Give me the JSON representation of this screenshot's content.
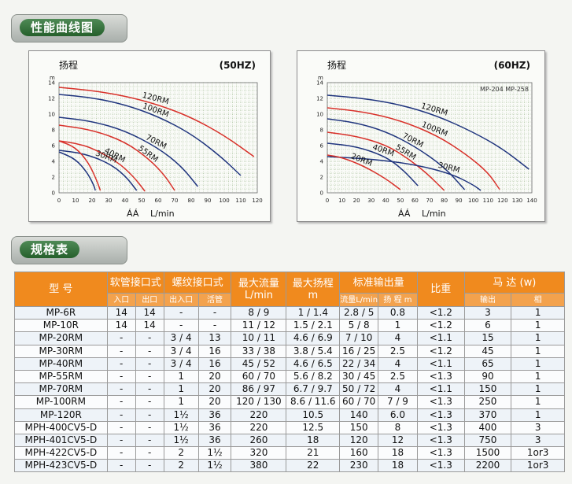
{
  "sections": {
    "curves_title": "性能曲线图",
    "spec_title": "规格表"
  },
  "chart_data": [
    {
      "type": "line",
      "title": "(50HZ)",
      "ylabel": "扬程",
      "yunit": "m",
      "xlabel": "L/min",
      "x_axis_mark": "ÁÁ",
      "xlim": [
        0,
        120
      ],
      "ylim": [
        0,
        14
      ],
      "xticks": [
        0,
        10,
        20,
        30,
        40,
        50,
        60,
        70,
        80,
        90,
        100,
        110,
        120
      ],
      "yticks": [
        0,
        2,
        4,
        6,
        8,
        10,
        12,
        14
      ],
      "grid": true,
      "series": [
        {
          "name": "120RM",
          "color": "#d8312a",
          "x": [
            0,
            20,
            40,
            60,
            80,
            100,
            118
          ],
          "y": [
            13.4,
            13.0,
            12.3,
            11.2,
            9.6,
            7.3,
            4.6
          ]
        },
        {
          "name": "100RM",
          "color": "#20357e",
          "x": [
            0,
            20,
            40,
            60,
            80,
            98,
            110
          ],
          "y": [
            12.5,
            12.1,
            11.2,
            9.7,
            7.5,
            4.6,
            2.2
          ]
        },
        {
          "name": "70RM",
          "color": "#20357e",
          "x": [
            0,
            20,
            40,
            60,
            74,
            84
          ],
          "y": [
            9.6,
            9.1,
            7.9,
            5.7,
            3.4,
            0.8
          ]
        },
        {
          "name": "55RM",
          "color": "#d8312a",
          "x": [
            0,
            20,
            40,
            55,
            64,
            70
          ],
          "y": [
            8.6,
            8.0,
            6.5,
            4.2,
            2.2,
            0.3
          ]
        },
        {
          "name": "40RM",
          "color": "#d8312a",
          "x": [
            0,
            10,
            20,
            35,
            45,
            52
          ],
          "y": [
            6.6,
            6.3,
            5.7,
            4.0,
            2.1,
            0.2
          ]
        },
        {
          "name": "30RM",
          "color": "#20357e",
          "x": [
            0,
            15,
            30,
            40,
            47
          ],
          "y": [
            5.4,
            5.0,
            3.8,
            2.2,
            0.3
          ]
        },
        {
          "name": "",
          "color": "#d8312a",
          "x": [
            0,
            10,
            18,
            23,
            25
          ],
          "y": [
            6.6,
            5.8,
            3.8,
            1.5,
            0.3
          ]
        },
        {
          "name": "",
          "color": "#20357e",
          "x": [
            0,
            10,
            17,
            21,
            22
          ],
          "y": [
            5.2,
            4.3,
            2.6,
            1.0,
            0.3
          ]
        }
      ]
    },
    {
      "type": "line",
      "title": "(60HZ)",
      "ylabel": "扬程",
      "yunit": "m",
      "xlabel": "L/min",
      "x_axis_mark": "ÁÁ",
      "annotation": "MP-204 MP-258",
      "xlim": [
        0,
        140
      ],
      "ylim": [
        0,
        14
      ],
      "xticks": [
        0,
        10,
        20,
        30,
        40,
        50,
        60,
        70,
        80,
        90,
        100,
        110,
        120,
        130,
        140
      ],
      "yticks": [
        0,
        2,
        4,
        6,
        8,
        10,
        12,
        14
      ],
      "grid": true,
      "series": [
        {
          "name": "120RM",
          "color": "#20357e",
          "x": [
            0,
            25,
            50,
            75,
            100,
            120,
            138
          ],
          "y": [
            12.4,
            12.0,
            11.2,
            9.8,
            7.7,
            5.6,
            3.0
          ]
        },
        {
          "name": "100RM",
          "color": "#d8312a",
          "x": [
            0,
            25,
            50,
            75,
            95,
            110,
            118
          ],
          "y": [
            10.8,
            10.3,
            9.2,
            7.3,
            4.9,
            2.6,
            0.4
          ]
        },
        {
          "name": "70RM",
          "color": "#20357e",
          "x": [
            0,
            20,
            40,
            60,
            80,
            94
          ],
          "y": [
            9.4,
            8.9,
            7.8,
            5.9,
            3.3,
            0.4
          ]
        },
        {
          "name": "55RM",
          "color": "#d8312a",
          "x": [
            0,
            20,
            40,
            55,
            68,
            80
          ],
          "y": [
            7.7,
            7.2,
            6.1,
            4.4,
            2.5,
            0.3
          ]
        },
        {
          "name": "40RM",
          "color": "#20357e",
          "x": [
            0,
            20,
            40,
            52,
            62
          ],
          "y": [
            6.3,
            5.9,
            4.6,
            2.9,
            0.9
          ]
        },
        {
          "name": "30RM",
          "color": "#20357e",
          "x": [
            0,
            30,
            60,
            85,
            100,
            105
          ],
          "y": [
            4.6,
            4.3,
            3.6,
            2.4,
            1.0,
            0.3
          ]
        },
        {
          "name": "20RM",
          "color": "#d8312a",
          "x": [
            0,
            10,
            25,
            40,
            50
          ],
          "y": [
            4.8,
            4.5,
            3.4,
            1.8,
            0.4
          ]
        }
      ]
    }
  ],
  "spec_table": {
    "headers": {
      "model": "型 号",
      "hose": "软管接口式",
      "hose_in": "入口",
      "hose_out": "出口",
      "thread": "螺纹接口式",
      "thread_inout": "出入口",
      "thread_union": "活管",
      "max_flow": "最大流量",
      "max_flow_unit": "L/min",
      "max_head": "最大扬程",
      "max_head_unit": "m",
      "std_output": "标准输出量",
      "std_flow": "流量L/min",
      "std_head": "扬 程",
      "std_head_unit": "m",
      "sg": "比重",
      "motor": "马 达",
      "motor_unit": "(w)",
      "motor_out": "输出",
      "motor_phase": "相"
    },
    "rows": [
      [
        "MP-6R",
        "14",
        "14",
        "-",
        "-",
        "8 / 9",
        "1 / 1.4",
        "2.8 / 5",
        "0.8",
        "<1.2",
        "3",
        "1"
      ],
      [
        "MP-10R",
        "14",
        "14",
        "-",
        "-",
        "11 / 12",
        "1.5 / 2.1",
        "5 / 8",
        "1",
        "<1.2",
        "6",
        "1"
      ],
      [
        "MP-20RM",
        "-",
        "-",
        "3 / 4",
        "13",
        "10 / 11",
        "4.6 / 6.9",
        "7 / 10",
        "4",
        "<1.1",
        "15",
        "1"
      ],
      [
        "MP-30RM",
        "-",
        "-",
        "3 / 4",
        "16",
        "33 / 38",
        "3.8 / 5.4",
        "16 / 25",
        "2.5",
        "<1.2",
        "45",
        "1"
      ],
      [
        "MP-40RM",
        "-",
        "-",
        "3 / 4",
        "16",
        "45 / 52",
        "4.6 / 6.5",
        "22 / 34",
        "4",
        "<1.1",
        "65",
        "1"
      ],
      [
        "MP-55RM",
        "-",
        "-",
        "1",
        "20",
        "60 / 70",
        "5.6 / 8.2",
        "30 / 45",
        "2.5",
        "<1.3",
        "90",
        "1"
      ],
      [
        "MP-70RM",
        "-",
        "-",
        "1",
        "20",
        "86 / 97",
        "6.7 / 9.7",
        "50 / 72",
        "4",
        "<1.1",
        "150",
        "1"
      ],
      [
        "MP-100RM",
        "-",
        "-",
        "1",
        "20",
        "120 / 130",
        "8.6 / 11.6",
        "60 / 70",
        "7 / 9",
        "<1.3",
        "250",
        "1"
      ],
      [
        "MP-120R",
        "-",
        "-",
        "1½",
        "36",
        "220",
        "10.5",
        "140",
        "6.0",
        "<1.3",
        "370",
        "1"
      ],
      [
        "MPH-400CV5-D",
        "-",
        "-",
        "1½",
        "36",
        "220",
        "12.5",
        "150",
        "8",
        "<1.3",
        "400",
        "3"
      ],
      [
        "MPH-401CV5-D",
        "-",
        "-",
        "1½",
        "36",
        "260",
        "18",
        "120",
        "12",
        "<1.3",
        "750",
        "3"
      ],
      [
        "MPH-422CV5-D",
        "-",
        "-",
        "2",
        "1½",
        "320",
        "21",
        "160",
        "18",
        "<1.3",
        "1500",
        "1or3"
      ],
      [
        "MPH-423CV5-D",
        "-",
        "-",
        "2",
        "1½",
        "380",
        "22",
        "230",
        "18",
        "<1.3",
        "2200",
        "1or3"
      ]
    ]
  }
}
